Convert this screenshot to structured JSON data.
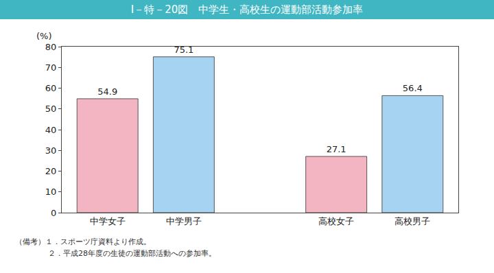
{
  "chart_data": {
    "type": "bar",
    "title": "Ⅰ－特－20図　中学生・高校生の運動部活動参加率",
    "y_label": "(%)",
    "categories": [
      "中学女子",
      "中学男子",
      null,
      "高校女子",
      "高校男子"
    ],
    "values": [
      54.9,
      75.1,
      null,
      27.1,
      56.4
    ],
    "colors": [
      "#f4b5c3",
      "#a6d3f1",
      null,
      "#f4b5c3",
      "#a6d3f1"
    ],
    "ylim": [
      0,
      80
    ],
    "yticks": [
      0,
      10,
      20,
      30,
      40,
      50,
      60,
      70,
      80
    ],
    "grid": false,
    "data_labels": true,
    "notes": [
      "（備考）１．スポーツ庁資料より作成。",
      "２．平成28年度の生徒の運動部活動への参加率。"
    ]
  }
}
